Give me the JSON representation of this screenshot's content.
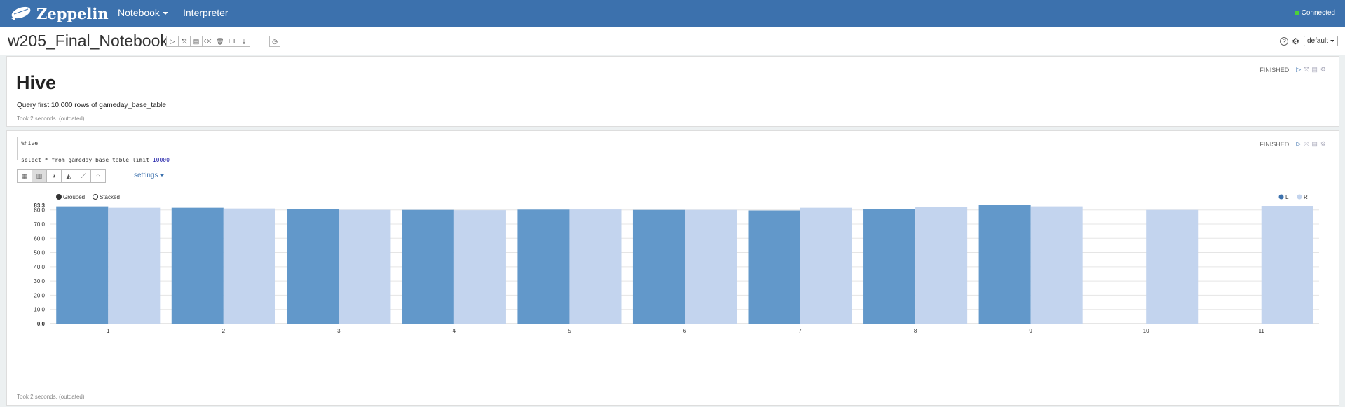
{
  "navbar": {
    "brand": "Zeppelin",
    "notebook_label": "Notebook",
    "interpreter_label": "Interpreter",
    "connection_status": "Connected"
  },
  "notebook": {
    "title": "w205_Final_Notebook",
    "toolbar": [
      "run-all",
      "show-hide-code",
      "show-hide-output",
      "clear-output",
      "remove",
      "clone",
      "export"
    ],
    "default_label": "default"
  },
  "paragraphs": [
    {
      "status": "FINISHED",
      "heading": "Hive",
      "text": "Query first 10,000 rows of gameday_base_table",
      "took": "Took 2 seconds. (outdated)"
    },
    {
      "status": "FINISHED",
      "code_line1": "%hive",
      "code_line2_prefix": "select * from gameday_base_table limit ",
      "code_line2_number": "10000",
      "settings_label": "settings",
      "took": "Took 2 seconds. (outdated)"
    }
  ],
  "chart_data": {
    "type": "bar",
    "mode_options": [
      "Grouped",
      "Stacked"
    ],
    "selected_mode": "Grouped",
    "categories": [
      "1",
      "2",
      "3",
      "4",
      "5",
      "6",
      "7",
      "8",
      "9",
      "10",
      "11"
    ],
    "series": [
      {
        "name": "L",
        "color": "#6298ca",
        "values": [
          82.5,
          81.5,
          80.5,
          80.0,
          80.2,
          80.0,
          79.6,
          80.6,
          83.3,
          null,
          null
        ]
      },
      {
        "name": "R",
        "color": "#c3d4ee",
        "values": [
          81.5,
          81.0,
          80.0,
          79.8,
          80.3,
          80.0,
          81.5,
          82.2,
          82.5,
          80.0,
          82.8
        ]
      }
    ],
    "ymax_label": "83.3",
    "yticks": [
      "0.0",
      "10.0",
      "20.0",
      "30.0",
      "40.0",
      "50.0",
      "60.0",
      "70.0",
      "80.0"
    ],
    "ylim": [
      0,
      83.3
    ],
    "legend_position": "top-right"
  }
}
